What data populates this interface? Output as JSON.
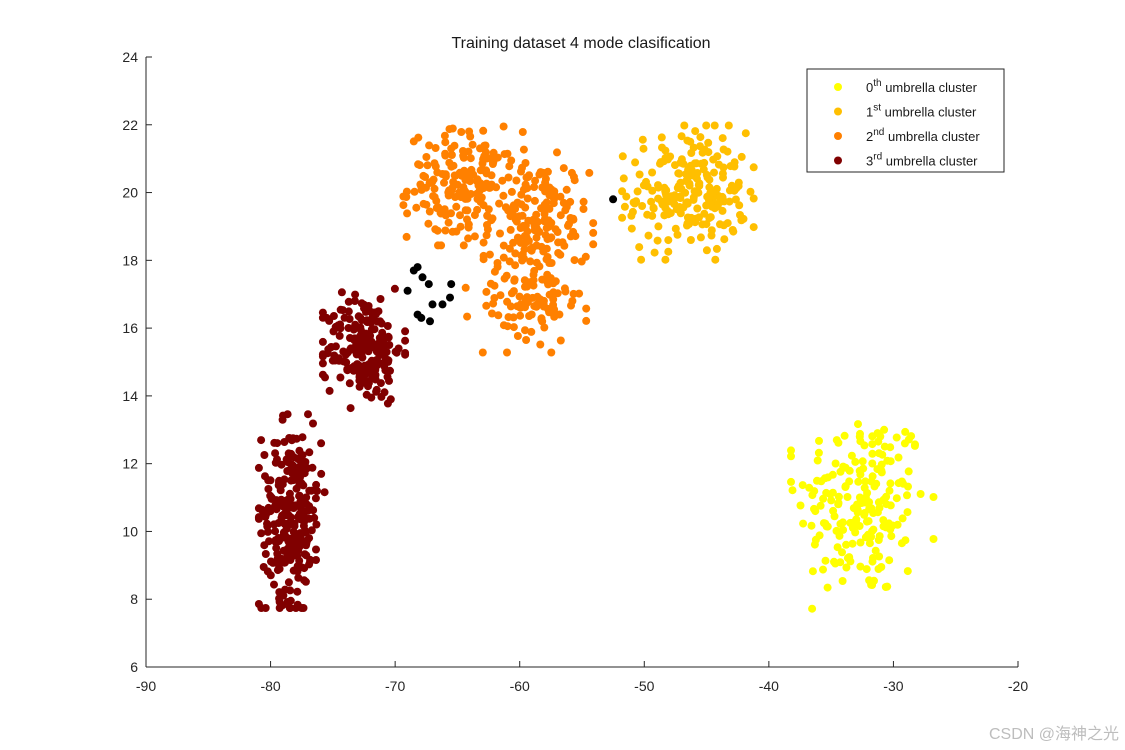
{
  "watermark": "CSDN @海神之光",
  "chart_data": {
    "type": "scatter",
    "title": "Training dataset 4 mode clasification",
    "xlabel": "",
    "ylabel": "",
    "xlim": [
      -90,
      -20
    ],
    "ylim": [
      6,
      24
    ],
    "xticks": [
      -90,
      -80,
      -70,
      -60,
      -50,
      -40,
      -30,
      -20
    ],
    "yticks": [
      6,
      8,
      10,
      12,
      14,
      16,
      18,
      20,
      22,
      24
    ],
    "grid": false,
    "legend_position": "top-right",
    "legend": [
      {
        "prefix": "0",
        "sup": "th",
        "text": " umbrella cluster",
        "color": "#FFFF00"
      },
      {
        "prefix": "1",
        "sup": "st",
        "text": " umbrella cluster",
        "color": "#FFBF00"
      },
      {
        "prefix": "2",
        "sup": "nd",
        "text": " umbrella cluster",
        "color": "#FF8000"
      },
      {
        "prefix": "3",
        "sup": "rd",
        "text": " umbrella cluster",
        "color": "#800000"
      }
    ],
    "series": [
      {
        "color": "#FFFF00",
        "clusters": [
          {
            "cx": -32.5,
            "cy": 10.8,
            "sx": 2.6,
            "sy": 1.4,
            "n": 200
          }
        ]
      },
      {
        "color": "#FFBF00",
        "clusters": [
          {
            "cx": -46.5,
            "cy": 20.0,
            "sx": 2.4,
            "sy": 0.9,
            "n": 220
          }
        ]
      },
      {
        "color": "#FF8000",
        "clusters": [
          {
            "cx": -64.5,
            "cy": 20.2,
            "sx": 2.2,
            "sy": 0.8,
            "n": 180
          },
          {
            "cx": -58.5,
            "cy": 19.0,
            "sx": 2.0,
            "sy": 1.0,
            "n": 170
          },
          {
            "cx": -59.5,
            "cy": 16.6,
            "sx": 2.2,
            "sy": 0.6,
            "n": 80
          }
        ]
      },
      {
        "color": "#800000",
        "clusters": [
          {
            "cx": -72.5,
            "cy": 15.4,
            "sx": 1.5,
            "sy": 0.8,
            "n": 200
          },
          {
            "cx": -78.3,
            "cy": 10.6,
            "sx": 1.2,
            "sy": 1.3,
            "n": 260
          }
        ]
      },
      {
        "color": "#000000",
        "points": [
          [
            -68.5,
            17.7
          ],
          [
            -68.2,
            17.8
          ],
          [
            -67.8,
            17.5
          ],
          [
            -67.3,
            17.3
          ],
          [
            -69.0,
            17.1
          ],
          [
            -67.0,
            16.7
          ],
          [
            -66.2,
            16.7
          ],
          [
            -65.6,
            16.9
          ],
          [
            -65.5,
            17.3
          ],
          [
            -68.2,
            16.4
          ],
          [
            -67.9,
            16.3
          ],
          [
            -67.2,
            16.2
          ],
          [
            -52.5,
            19.8
          ]
        ]
      }
    ]
  }
}
